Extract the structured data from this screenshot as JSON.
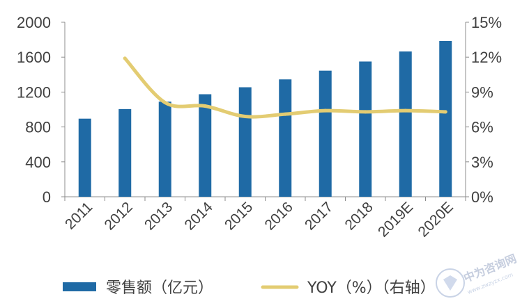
{
  "chart_data": {
    "type": "bar",
    "categories": [
      "2011",
      "2012",
      "2013",
      "2014",
      "2015",
      "2016",
      "2017",
      "2018",
      "2019E",
      "2020E"
    ],
    "series": [
      {
        "name": "零售额（亿元）",
        "type": "bar",
        "axis": "left",
        "color": "#1f6aa5",
        "values": [
          895,
          1005,
          1090,
          1175,
          1255,
          1345,
          1445,
          1550,
          1665,
          1785
        ]
      },
      {
        "name": "YOY（%）（右轴）",
        "type": "line",
        "axis": "right",
        "color": "#e3cc72",
        "values": [
          null,
          11.9,
          8.1,
          7.8,
          6.9,
          7.1,
          7.4,
          7.3,
          7.4,
          7.3
        ]
      }
    ],
    "y_left": {
      "min": 0,
      "max": 2000,
      "ticks": [
        "0",
        "400",
        "800",
        "1200",
        "1600",
        "2000"
      ]
    },
    "y_right": {
      "min": 0,
      "max": 15,
      "ticks": [
        "0%",
        "3%",
        "6%",
        "9%",
        "12%",
        "15%"
      ]
    },
    "grid": false,
    "legend_position": "bottom"
  },
  "watermark": {
    "text": "中为咨询网",
    "subtext": "www.zwzyzx.com"
  }
}
